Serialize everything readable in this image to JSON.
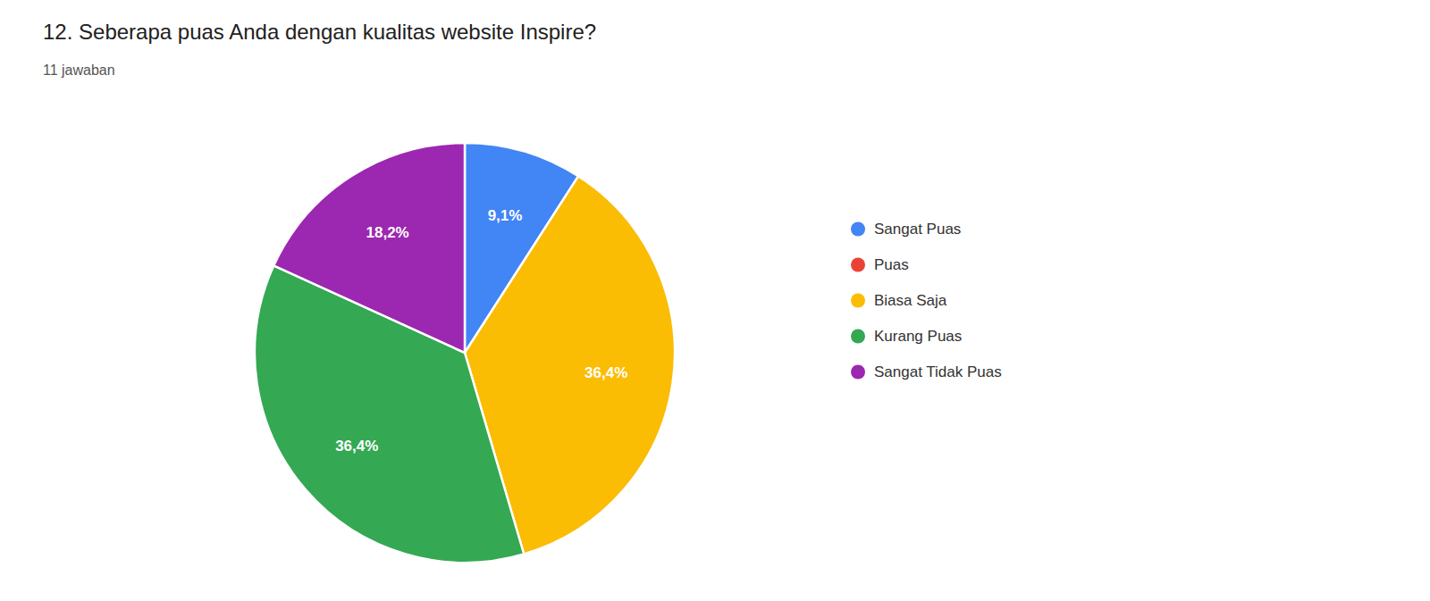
{
  "chart_data": {
    "type": "pie",
    "title": "12.  Seberapa puas Anda dengan kualitas website Inspire?",
    "subtitle": "11 jawaban",
    "categories": [
      "Sangat Puas",
      "Puas",
      "Biasa Saja",
      "Kurang Puas",
      "Sangat Tidak Puas"
    ],
    "values": [
      9.1,
      0,
      36.4,
      36.4,
      18.2
    ],
    "value_labels": [
      "9,1%",
      null,
      "36,4%",
      "36,4%",
      "18,2%"
    ],
    "colors": [
      "#4285F4",
      "#EA4335",
      "#FBBC04",
      "#34A853",
      "#9C27B0"
    ],
    "data_labels": true,
    "legend": "right"
  }
}
